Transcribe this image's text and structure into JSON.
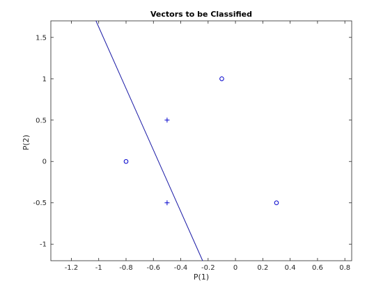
{
  "chart_data": {
    "type": "scatter",
    "title": "Vectors to be Classified",
    "xlabel": "P(1)",
    "ylabel": "P(2)",
    "xlim": [
      -1.35,
      0.85
    ],
    "ylim": [
      -1.2,
      1.7
    ],
    "x_ticks": [
      -1.2,
      -1,
      -0.8,
      -0.6,
      -0.4,
      -0.2,
      0,
      0.2,
      0.4,
      0.6,
      0.8
    ],
    "x_tick_labels": [
      "-1.2",
      "-1",
      "-0.8",
      "-0.6",
      "-0.4",
      "-0.2",
      "0",
      "0.2",
      "0.4",
      "0.6",
      "0.8"
    ],
    "y_ticks": [
      -1,
      -0.5,
      0,
      0.5,
      1,
      1.5
    ],
    "y_tick_labels": [
      "-1",
      "-0.5",
      "0",
      "0.5",
      "1",
      "1.5"
    ],
    "grid": false,
    "series": [
      {
        "marker": "plus",
        "points": [
          [
            -0.5,
            0.5
          ],
          [
            -0.5,
            -0.5
          ]
        ]
      },
      {
        "marker": "circle",
        "points": [
          [
            -0.8,
            0.0
          ],
          [
            -0.1,
            1.0
          ],
          [
            0.3,
            -0.5
          ]
        ]
      }
    ],
    "decision_boundary": {
      "points": [
        [
          -1.02,
          1.7
        ],
        [
          -0.24,
          -1.2
        ]
      ]
    },
    "colors": {
      "marker": "#0000cc",
      "line": "#1a1aa6",
      "axis": "#262626"
    }
  }
}
